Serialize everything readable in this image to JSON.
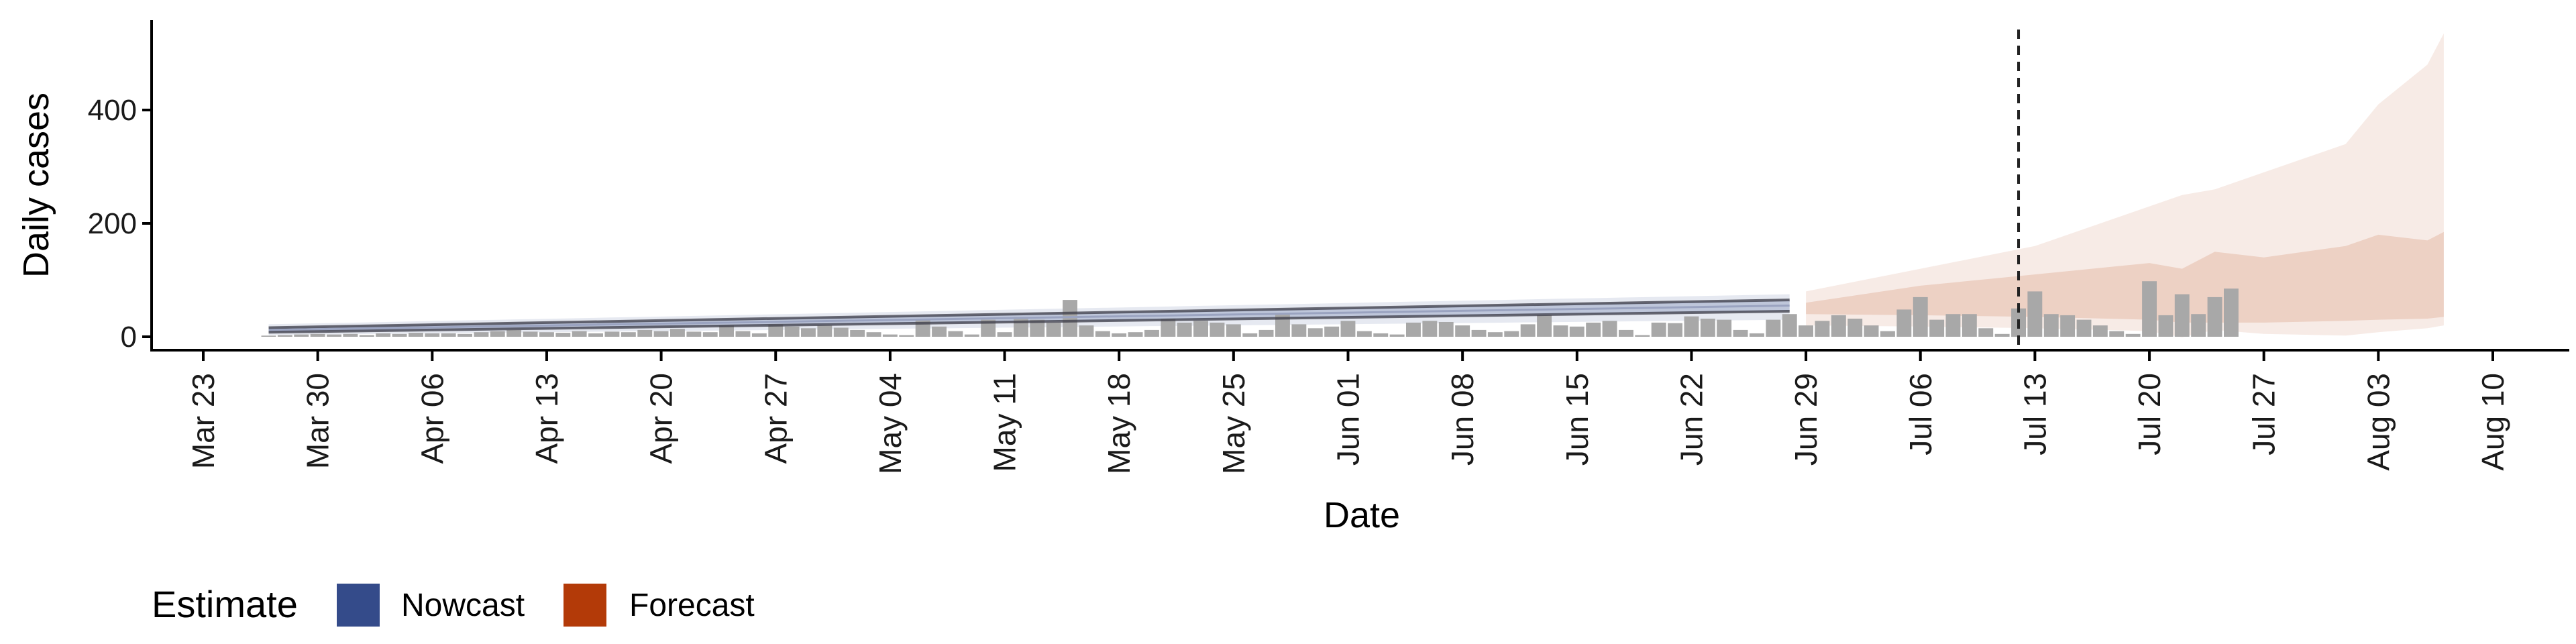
{
  "chart_data": {
    "type": "bar",
    "xlabel": "Date",
    "ylabel": "Daily cases",
    "ylim": [
      -25,
      560
    ],
    "y_ticks": [
      0,
      200,
      400
    ],
    "x_range": [
      "2020-03-20",
      "2020-08-14"
    ],
    "x_ticks": [
      {
        "date": "2020-03-23",
        "label": "Mar 23"
      },
      {
        "date": "2020-03-30",
        "label": "Mar 30"
      },
      {
        "date": "2020-04-06",
        "label": "Apr 06"
      },
      {
        "date": "2020-04-13",
        "label": "Apr 13"
      },
      {
        "date": "2020-04-20",
        "label": "Apr 20"
      },
      {
        "date": "2020-04-27",
        "label": "Apr 27"
      },
      {
        "date": "2020-05-04",
        "label": "May 04"
      },
      {
        "date": "2020-05-11",
        "label": "May 11"
      },
      {
        "date": "2020-05-18",
        "label": "May 18"
      },
      {
        "date": "2020-05-25",
        "label": "May 25"
      },
      {
        "date": "2020-06-01",
        "label": "Jun 01"
      },
      {
        "date": "2020-06-08",
        "label": "Jun 08"
      },
      {
        "date": "2020-06-15",
        "label": "Jun 15"
      },
      {
        "date": "2020-06-22",
        "label": "Jun 22"
      },
      {
        "date": "2020-06-29",
        "label": "Jun 29"
      },
      {
        "date": "2020-07-06",
        "label": "Jul 06"
      },
      {
        "date": "2020-07-13",
        "label": "Jul 13"
      },
      {
        "date": "2020-07-20",
        "label": "Jul 20"
      },
      {
        "date": "2020-07-27",
        "label": "Jul 27"
      },
      {
        "date": "2020-08-03",
        "label": "Aug 03"
      },
      {
        "date": "2020-08-10",
        "label": "Aug 10"
      }
    ],
    "vline_date": "2020-07-12",
    "grid": false,
    "legend": {
      "title": "Estimate",
      "position": "bottom-left",
      "items": [
        {
          "label": "Nowcast",
          "color": "#344b8a"
        },
        {
          "label": "Forecast",
          "color": "#b33a08"
        }
      ]
    },
    "bars": {
      "start_date": "2020-03-27",
      "color": "#a8a8a8",
      "values": [
        2,
        3,
        4,
        5,
        4,
        5,
        3,
        6,
        5,
        7,
        6,
        6,
        5,
        8,
        10,
        12,
        9,
        8,
        7,
        10,
        6,
        9,
        8,
        12,
        10,
        14,
        9,
        8,
        20,
        10,
        6,
        22,
        18,
        15,
        20,
        16,
        12,
        8,
        4,
        3,
        32,
        18,
        10,
        4,
        30,
        8,
        35,
        30,
        25,
        65,
        20,
        10,
        6,
        8,
        12,
        32,
        25,
        28,
        25,
        22,
        6,
        12,
        42,
        22,
        15,
        18,
        28,
        10,
        6,
        4,
        25,
        28,
        26,
        20,
        12,
        8,
        10,
        22,
        38,
        20,
        18,
        25,
        28,
        12,
        3,
        25,
        24,
        36,
        32,
        30,
        12,
        6,
        30,
        40,
        20,
        28,
        38,
        32,
        20,
        10,
        48,
        70,
        30,
        40,
        40,
        15,
        5,
        50,
        80,
        40,
        38,
        30,
        20,
        10,
        5,
        98,
        38,
        75,
        40,
        70,
        85
      ]
    },
    "nowcast": {
      "start_date": "2020-03-27",
      "end_date": "2020-06-28",
      "median_start": 12,
      "median_end": 55,
      "outer_lower_start": 3,
      "outer_lower_end": 30,
      "outer_upper_start": 22,
      "outer_upper_end": 75,
      "inner_lower_start": 8,
      "inner_lower_end": 45,
      "inner_upper_start": 16,
      "inner_upper_end": 65,
      "band_color": "#344b8a"
    },
    "forecast": {
      "color": "#b33a08",
      "dates": [
        "2020-06-29",
        "2020-07-06",
        "2020-07-13",
        "2020-07-20",
        "2020-07-22",
        "2020-07-24",
        "2020-07-27",
        "2020-08-01",
        "2020-08-03",
        "2020-08-06",
        "2020-08-07"
      ],
      "outer_lower": [
        20,
        18,
        15,
        10,
        -1,
        12,
        5,
        2,
        8,
        15,
        20
      ],
      "outer_upper": [
        80,
        120,
        160,
        230,
        250,
        260,
        290,
        340,
        410,
        480,
        535
      ],
      "inner_lower": [
        40,
        38,
        35,
        30,
        25,
        25,
        25,
        28,
        30,
        32,
        35
      ],
      "inner_upper": [
        60,
        90,
        110,
        130,
        120,
        150,
        140,
        160,
        180,
        170,
        185
      ]
    }
  }
}
